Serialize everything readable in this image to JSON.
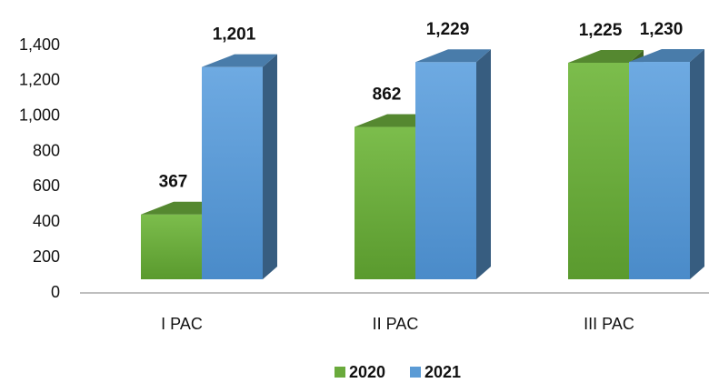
{
  "chart_data": {
    "type": "bar3d",
    "categories": [
      "I PAC",
      "II PAC",
      "III PAC"
    ],
    "series": [
      {
        "name": "2020",
        "color": "#6aaa3c",
        "values": [
          367,
          862,
          1225
        ],
        "value_labels": [
          "367",
          "862",
          "1,225"
        ]
      },
      {
        "name": "2021",
        "color": "#5b9bd5",
        "values": [
          1201,
          1229,
          1230
        ],
        "value_labels": [
          "1,201",
          "1,229",
          "1,230"
        ]
      }
    ],
    "ylim": [
      0,
      1400
    ],
    "yticks": [
      0,
      200,
      400,
      600,
      800,
      {
        "value": 1000,
        "label": "1,000"
      },
      {
        "value": 1200,
        "label": "1,200"
      },
      {
        "value": 1400,
        "label": "1,400"
      }
    ],
    "legend": "bottom"
  }
}
